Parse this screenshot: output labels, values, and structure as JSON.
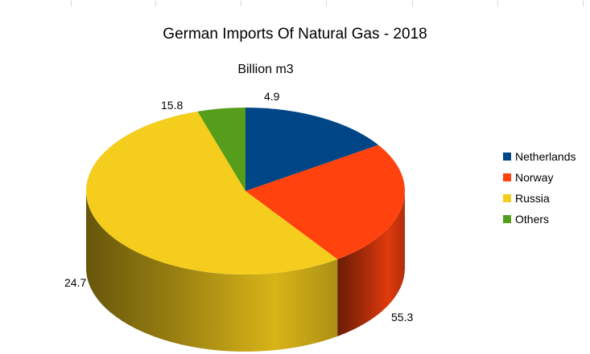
{
  "chart_data": {
    "type": "pie",
    "style": "3d",
    "title": "German Imports Of Natural Gas  - 2018",
    "subtitle": "Billion m3",
    "legend_position": "right",
    "slices": [
      {
        "label": "Netherlands",
        "value": 15.8,
        "color": "#004586",
        "value_label": "15.8"
      },
      {
        "label": "Norway",
        "value": 24.7,
        "color": "#ff420e",
        "value_label": "24.7"
      },
      {
        "label": "Russia",
        "value": 55.3,
        "color": "#f5cd1c",
        "value_label": "55.3"
      },
      {
        "label": "Others",
        "value": 4.9,
        "color": "#579d1c",
        "value_label": "4.9"
      }
    ]
  }
}
